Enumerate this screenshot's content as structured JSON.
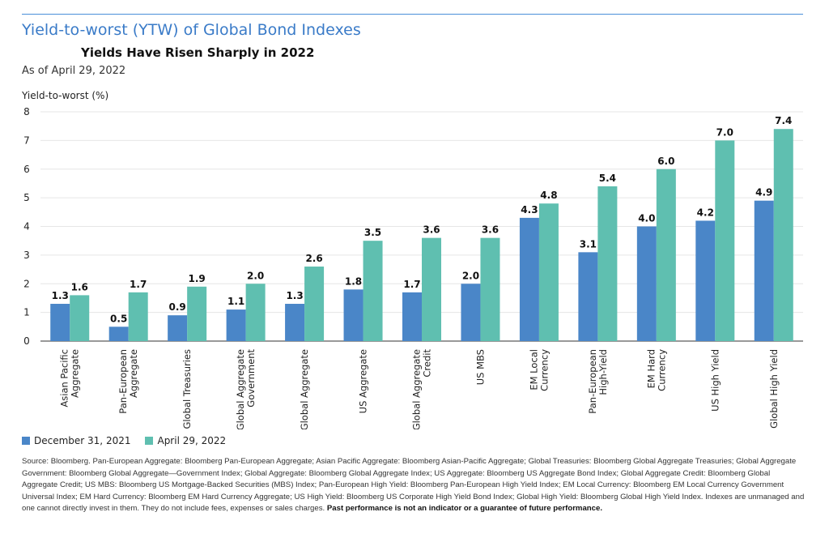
{
  "header": {
    "title": "Yield-to-worst (YTW) of Global Bond Indexes",
    "subtitle": "Yields Have Risen Sharply in 2022",
    "as_of": "As of April 29, 2022"
  },
  "chart_data": {
    "type": "bar",
    "ylabel": "Yield-to-worst (%)",
    "ylim": [
      0,
      8
    ],
    "yticks": [
      0,
      1,
      2,
      3,
      4,
      5,
      6,
      7,
      8
    ],
    "grid": true,
    "legend_position": "bottom-left",
    "categories": [
      [
        "Asian Pacific",
        "Aggregate"
      ],
      [
        "Pan-European",
        "Aggregate"
      ],
      [
        "Global Treasuries"
      ],
      [
        "Global Aggregate",
        "Government"
      ],
      [
        "Global Aggregate"
      ],
      [
        "US Aggregate"
      ],
      [
        "Global Aggregate",
        "Credit"
      ],
      [
        "US MBS"
      ],
      [
        "EM Local",
        "Currency"
      ],
      [
        "Pan-European",
        "High-Yield"
      ],
      [
        "EM Hard",
        "Currency"
      ],
      [
        "US High Yield"
      ],
      [
        "Global High Yield"
      ]
    ],
    "series": [
      {
        "name": "December 31, 2021",
        "color": "#4a86c8",
        "values": [
          1.3,
          0.5,
          0.9,
          1.1,
          1.3,
          1.8,
          1.7,
          2.0,
          4.3,
          3.1,
          4.0,
          4.2,
          4.9
        ]
      },
      {
        "name": "April 29, 2022",
        "color": "#5fbfb0",
        "values": [
          1.6,
          1.7,
          1.9,
          2.0,
          2.6,
          3.5,
          3.6,
          3.6,
          4.8,
          5.4,
          6.0,
          7.0,
          7.4
        ]
      }
    ]
  },
  "footer": {
    "source_text": "Source: Bloomberg. Pan-European Aggregate: Bloomberg Pan-European Aggregate; Asian Pacific Aggregate: Bloomberg Asian-Pacific Aggregate; Global Treasuries: Bloomberg Global Aggregate Treasuries; Global Aggregate Government: Bloomberg Global Aggregate—Government Index; Global Aggregate: Bloomberg Global Aggregate Index; US Aggregate: Bloomberg US Aggregate Bond Index; Global Aggregate Credit: Bloomberg Global Aggregate Credit; US MBS: Bloomberg US Mortgage-Backed Securities (MBS) Index; Pan-European High Yield: Bloomberg Pan-European High Yield Index; EM Local Currency: Bloomberg EM Local Currency Government Universal Index; EM Hard Currency: Bloomberg EM Hard Currency Aggregate; US High Yield: Bloomberg US Corporate High Yield Bond Index; Global High Yield: Bloomberg Global High Yield Index. Indexes are unmanaged and one cannot directly invest in them. They do not include fees, expenses or sales charges.",
    "disclaimer": "Past performance is not an indicator or a guarantee of future performance."
  }
}
